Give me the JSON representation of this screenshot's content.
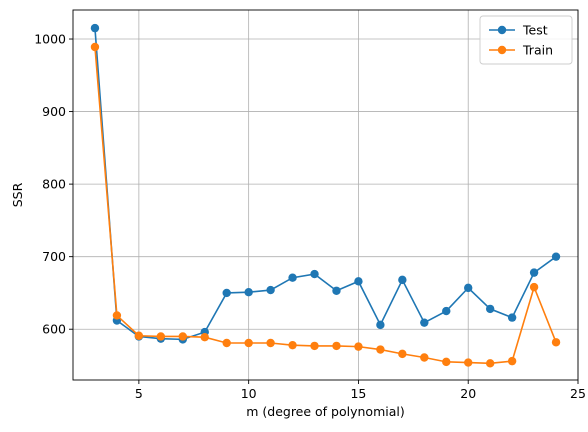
{
  "chart_data": {
    "type": "line",
    "title": "",
    "xlabel": "m (degree of polynomial)",
    "ylabel": "SSR",
    "xlim": [
      2.0,
      25.0
    ],
    "ylim": [
      530,
      1040
    ],
    "xticks": [
      5,
      10,
      15,
      20,
      25
    ],
    "yticks": [
      600,
      700,
      800,
      900,
      1000
    ],
    "grid": true,
    "legend_position": "top-right",
    "x": [
      3,
      4,
      5,
      6,
      7,
      8,
      9,
      10,
      11,
      12,
      13,
      14,
      15,
      16,
      17,
      18,
      19,
      20,
      21,
      22,
      23,
      24
    ],
    "series": [
      {
        "name": "Test",
        "color": "#1f77b4",
        "marker": "circle",
        "values": [
          1015,
          612,
          590,
          587,
          586,
          596,
          650,
          651,
          654,
          671,
          676,
          653,
          666,
          606,
          668,
          609,
          625,
          657,
          628,
          616,
          678,
          700
        ]
      },
      {
        "name": "Train",
        "color": "#ff7f0e",
        "marker": "circle",
        "values": [
          989,
          619,
          591,
          590,
          590,
          589,
          581,
          581,
          581,
          578,
          577,
          577,
          576,
          572,
          566,
          561,
          555,
          554,
          553,
          556,
          658,
          582
        ]
      }
    ]
  }
}
